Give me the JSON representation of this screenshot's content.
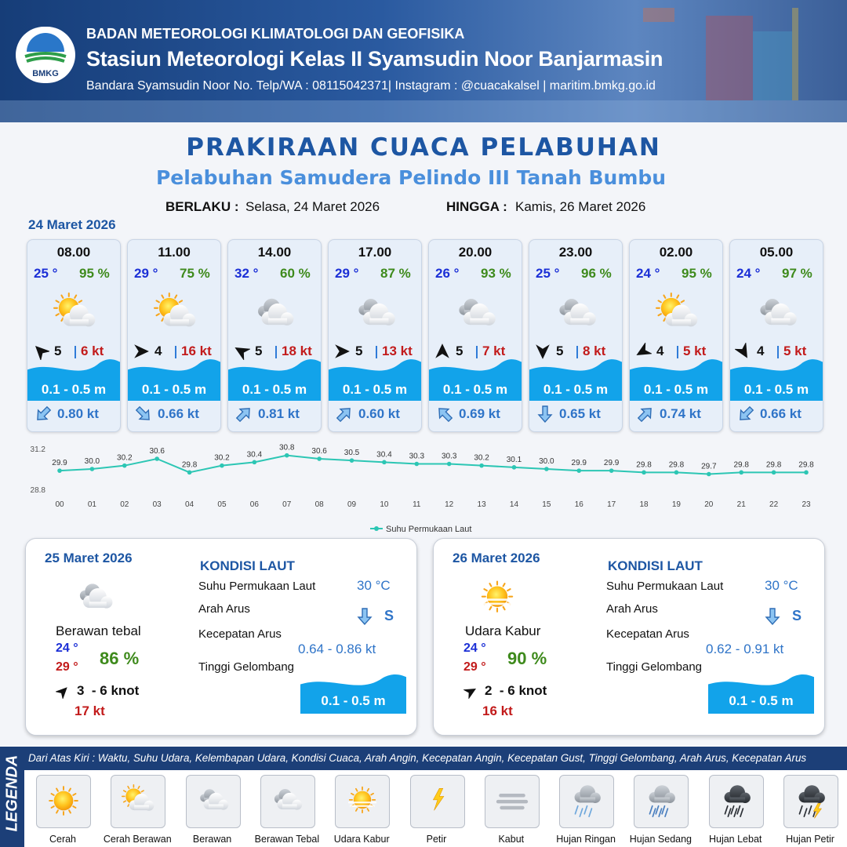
{
  "header": {
    "logo": "BMKG",
    "org": "BADAN METEOROLOGI KLIMATOLOGI DAN GEOFISIKA",
    "station": "Stasiun Meteorologi Kelas II Syamsudin Noor Banjarmasin",
    "contact": "Bandara Syamsudin Noor No. Telp/WA : 08115042371| Instagram : @cuacakalsel | maritim.bmkg.go.id"
  },
  "title": "PRAKIRAAN CUACA PELABUHAN",
  "subtitle": "Pelabuhan Samudera Pelindo III Tanah Bumbu",
  "validity": {
    "from_label": "BERLAKU :",
    "from": "Selasa, 24 Maret 2026",
    "to_label": "HINGGA :",
    "to": "Kamis, 26 Maret 2026"
  },
  "forecast": {
    "date": "24 Maret 2026",
    "cards": [
      {
        "time": "08.00",
        "temp": "25 °",
        "humidity": "95 %",
        "wind": "5",
        "gust": "6 kt",
        "wave": "0.1 - 0.5 m",
        "current": "0.80 kt"
      },
      {
        "time": "11.00",
        "temp": "29 °",
        "humidity": "75 %",
        "wind": "4",
        "gust": "16 kt",
        "wave": "0.1 - 0.5 m",
        "current": "0.66 kt"
      },
      {
        "time": "14.00",
        "temp": "32 °",
        "humidity": "60 %",
        "wind": "5",
        "gust": "18 kt",
        "wave": "0.1 - 0.5 m",
        "current": "0.81 kt"
      },
      {
        "time": "17.00",
        "temp": "29 °",
        "humidity": "87 %",
        "wind": "5",
        "gust": "13 kt",
        "wave": "0.1 - 0.5 m",
        "current": "0.60 kt"
      },
      {
        "time": "20.00",
        "temp": "26 °",
        "humidity": "93 %",
        "wind": "5",
        "gust": "7 kt",
        "wave": "0.1 - 0.5 m",
        "current": "0.69 kt"
      },
      {
        "time": "23.00",
        "temp": "25 °",
        "humidity": "96 %",
        "wind": "5",
        "gust": "8 kt",
        "wave": "0.1 - 0.5 m",
        "current": "0.65 kt"
      },
      {
        "time": "02.00",
        "temp": "24 °",
        "humidity": "95 %",
        "wind": "4",
        "gust": "5 kt",
        "wave": "0.1 - 0.5 m",
        "current": "0.74 kt"
      },
      {
        "time": "05.00",
        "temp": "24 °",
        "humidity": "97 %",
        "wind": "4",
        "gust": "5 kt",
        "wave": "0.1 - 0.5 m",
        "current": "0.66 kt"
      }
    ]
  },
  "chart_data": {
    "type": "line",
    "categories": [
      "00",
      "01",
      "02",
      "03",
      "04",
      "05",
      "06",
      "07",
      "08",
      "09",
      "10",
      "11",
      "12",
      "13",
      "14",
      "15",
      "16",
      "17",
      "18",
      "19",
      "20",
      "21",
      "22",
      "23"
    ],
    "series": [
      {
        "name": "Suhu Permukaan Laut",
        "color": "#2cc6b4",
        "values": [
          29.9,
          30.0,
          30.2,
          30.6,
          29.8,
          30.2,
          30.4,
          30.8,
          30.6,
          30.5,
          30.4,
          30.3,
          30.3,
          30.2,
          30.1,
          30.0,
          29.9,
          29.9,
          29.8,
          29.8,
          29.7,
          29.8,
          29.8,
          29.8
        ],
        "value_labels": [
          "29.9",
          "30.0",
          "30.2",
          "30.6",
          "29.8",
          "30.2",
          "30.4",
          "30.8",
          "30.6",
          "30.5",
          "30.4",
          "30.3",
          "30.3",
          "30.2",
          "30.1",
          "30.0",
          "29.9",
          "29.9",
          "29.8",
          "29.8",
          "29.7",
          "29.8",
          "29.8",
          "29.8"
        ]
      }
    ],
    "ylim": [
      28.8,
      31.2
    ],
    "yticks": [
      28.8,
      31.2
    ],
    "grid": false
  },
  "days": [
    {
      "date": "25 Maret 2026",
      "condition": "Berawan tebal",
      "tmin": "24 °",
      "tmax": "29 °",
      "humidity": "86 %",
      "wind": "3  - 6 knot",
      "gust": "17 kt",
      "sea_title": "KONDISI LAUT",
      "sst_label": "Suhu Permukaan Laut",
      "sst": "30 °C",
      "current_dir_label": "Arah Arus",
      "current_dir": "S",
      "current_speed_label": "Kecepatan Arus",
      "current_speed": "0.64 - 0.86 kt",
      "wave_label": "Tinggi Gelombang",
      "wave": "0.1 - 0.5 m"
    },
    {
      "date": "26 Maret 2026",
      "condition": "Udara Kabur",
      "tmin": "24 °",
      "tmax": "29 °",
      "humidity": "90 %",
      "wind": "2  - 6 knot",
      "gust": "16 kt",
      "sea_title": "KONDISI LAUT",
      "sst_label": "Suhu Permukaan Laut",
      "sst": "30 °C",
      "current_dir_label": "Arah Arus",
      "current_dir": "S",
      "current_speed_label": "Kecepatan Arus",
      "current_speed": "0.62 - 0.91 kt",
      "wave_label": "Tinggi Gelombang",
      "wave": "0.1 - 0.5 m"
    }
  ],
  "legend": {
    "title": "LEGENDA",
    "description": "Dari Atas Kiri : Waktu, Suhu Udara, Kelembapan Udara, Kondisi Cuaca, Arah Angin, Kecepatan Angin, Kecepatan Gust, Tinggi Gelombang, Arah Arus, Kecepatan Arus",
    "items": [
      "Cerah",
      "Cerah Berawan",
      "Berawan",
      "Berawan Tebal",
      "Udara Kabur",
      "Petir",
      "Kabut",
      "Hujan Ringan",
      "Hujan Sedang",
      "Hujan Lebat",
      "Hujan Petir"
    ]
  }
}
